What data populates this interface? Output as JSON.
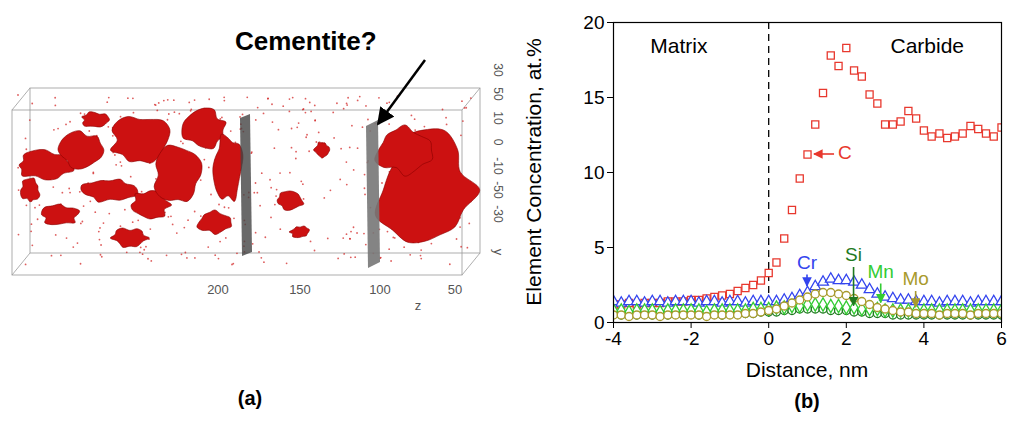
{
  "panel_a": {
    "label": "(a)",
    "annotation": "Cementite?",
    "z_ticks": [
      200,
      150,
      100,
      50
    ],
    "z_label": "z",
    "y_ticks": [
      30,
      50,
      10,
      0,
      -10,
      -50,
      -30
    ],
    "y_label": "y"
  },
  "chart_data": {
    "type": "scatter",
    "panel_label": "(b)",
    "xlabel": "Distance, nm",
    "ylabel": "Element Concentration, at.%",
    "xlim": [
      -4,
      6
    ],
    "xticks": [
      -4,
      -2,
      0,
      2,
      4,
      6
    ],
    "ylim": [
      0,
      20
    ],
    "yticks": [
      0,
      5,
      10,
      15,
      20
    ],
    "vlines": [
      0
    ],
    "x": [
      -4,
      -3.8,
      -3.6,
      -3.4,
      -3.2,
      -3,
      -2.8,
      -2.6,
      -2.4,
      -2.2,
      -2,
      -1.8,
      -1.6,
      -1.4,
      -1.2,
      -1,
      -0.8,
      -0.6,
      -0.4,
      -0.2,
      0,
      0.2,
      0.4,
      0.6,
      0.8,
      1,
      1.2,
      1.4,
      1.6,
      1.8,
      2,
      2.2,
      2.4,
      2.6,
      2.8,
      3,
      3.2,
      3.4,
      3.6,
      3.8,
      4,
      4.2,
      4.4,
      4.6,
      4.8,
      5,
      5.2,
      5.4,
      5.6,
      5.8,
      6
    ],
    "series": [
      {
        "name": "C",
        "color": "#e8382e",
        "marker": "square",
        "values": [
          1.2,
          1.2,
          1.3,
          1.2,
          1.3,
          1.3,
          1.3,
          1.4,
          1.4,
          1.4,
          1.5,
          1.5,
          1.6,
          1.7,
          1.8,
          1.9,
          2.1,
          2.3,
          2.5,
          2.8,
          3.3,
          4.0,
          5.6,
          7.5,
          9.6,
          11.2,
          13.2,
          15.3,
          17.8,
          17.1,
          18.3,
          16.8,
          16.4,
          15.2,
          14.6,
          13.2,
          13.2,
          13.4,
          14.1,
          13.6,
          12.8,
          12.4,
          12.6,
          12.3,
          12.4,
          12.6,
          13.1,
          12.9,
          12.6,
          12.4,
          13.0
        ]
      },
      {
        "name": "Cr",
        "color": "#3344ee",
        "marker": "triangle",
        "values": [
          1.4,
          1.3,
          1.4,
          1.4,
          1.3,
          1.4,
          1.4,
          1.3,
          1.4,
          1.4,
          1.4,
          1.3,
          1.4,
          1.4,
          1.3,
          1.4,
          1.4,
          1.3,
          1.4,
          1.4,
          1.4,
          1.4,
          1.5,
          1.6,
          1.8,
          2.0,
          2.4,
          2.7,
          2.9,
          2.8,
          2.8,
          2.7,
          2.5,
          2.2,
          1.9,
          1.7,
          1.6,
          1.5,
          1.5,
          1.4,
          1.4,
          1.4,
          1.3,
          1.4,
          1.4,
          1.4,
          1.3,
          1.4,
          1.4,
          1.4,
          1.4
        ]
      },
      {
        "name": "Si",
        "color": "#1f7a1f",
        "marker": "circle",
        "values": [
          0.6,
          0.5,
          0.6,
          0.5,
          0.6,
          0.5,
          0.6,
          0.5,
          0.6,
          0.5,
          0.6,
          0.5,
          0.6,
          0.6,
          0.5,
          0.6,
          0.6,
          0.6,
          0.6,
          0.7,
          0.7,
          0.7,
          0.8,
          0.8,
          0.9,
          0.9,
          0.9,
          0.9,
          0.8,
          0.8,
          0.8,
          0.7,
          0.7,
          0.6,
          0.6,
          0.6,
          0.5,
          0.5,
          0.5,
          0.5,
          0.5,
          0.5,
          0.5,
          0.5,
          0.5,
          0.5,
          0.5,
          0.5,
          0.5,
          0.5,
          0.5
        ]
      },
      {
        "name": "Mn",
        "color": "#33cc33",
        "marker": "diamond",
        "values": [
          0.8,
          0.8,
          0.7,
          0.8,
          0.8,
          0.8,
          0.7,
          0.8,
          0.8,
          0.8,
          0.8,
          0.8,
          0.7,
          0.8,
          0.8,
          0.8,
          0.8,
          0.8,
          0.9,
          0.9,
          0.9,
          1.0,
          1.0,
          1.1,
          1.1,
          1.2,
          1.2,
          1.2,
          1.1,
          1.1,
          1.0,
          1.0,
          0.9,
          0.9,
          0.9,
          0.8,
          0.8,
          0.8,
          0.8,
          0.8,
          0.8,
          0.8,
          0.8,
          0.8,
          0.8,
          0.8,
          0.8,
          0.8,
          0.8,
          0.8,
          0.8
        ]
      },
      {
        "name": "Mo",
        "color": "#a89a2c",
        "marker": "circle",
        "values": [
          0.5,
          0.5,
          0.4,
          0.5,
          0.5,
          0.5,
          0.4,
          0.5,
          0.5,
          0.5,
          0.5,
          0.5,
          0.4,
          0.5,
          0.5,
          0.5,
          0.5,
          0.6,
          0.6,
          0.7,
          0.8,
          0.9,
          1.1,
          1.3,
          1.5,
          1.7,
          1.9,
          2.0,
          2.0,
          1.9,
          1.8,
          1.6,
          1.4,
          1.2,
          1.0,
          0.9,
          0.8,
          0.7,
          0.7,
          0.6,
          0.6,
          0.6,
          0.5,
          0.6,
          0.6,
          0.6,
          0.5,
          0.6,
          0.6,
          0.6,
          0.6
        ]
      }
    ],
    "annotations": [
      {
        "text": "Matrix",
        "x": -2.3,
        "y": 18.3
      },
      {
        "text": "Carbide",
        "x": 4.1,
        "y": 18.3
      },
      {
        "text": "C",
        "x": 1.8,
        "y": 11.2,
        "arrow": "left"
      },
      {
        "text": "Cr",
        "x": 1.0,
        "y": 3.9,
        "arrow": "down"
      },
      {
        "text": "Si",
        "x": 2.2,
        "y": 4.4,
        "arrow": "down"
      },
      {
        "text": "Mn",
        "x": 2.9,
        "y": 3.3,
        "arrow": "down"
      },
      {
        "text": "Mo",
        "x": 3.8,
        "y": 2.8,
        "arrow": "down"
      }
    ]
  }
}
